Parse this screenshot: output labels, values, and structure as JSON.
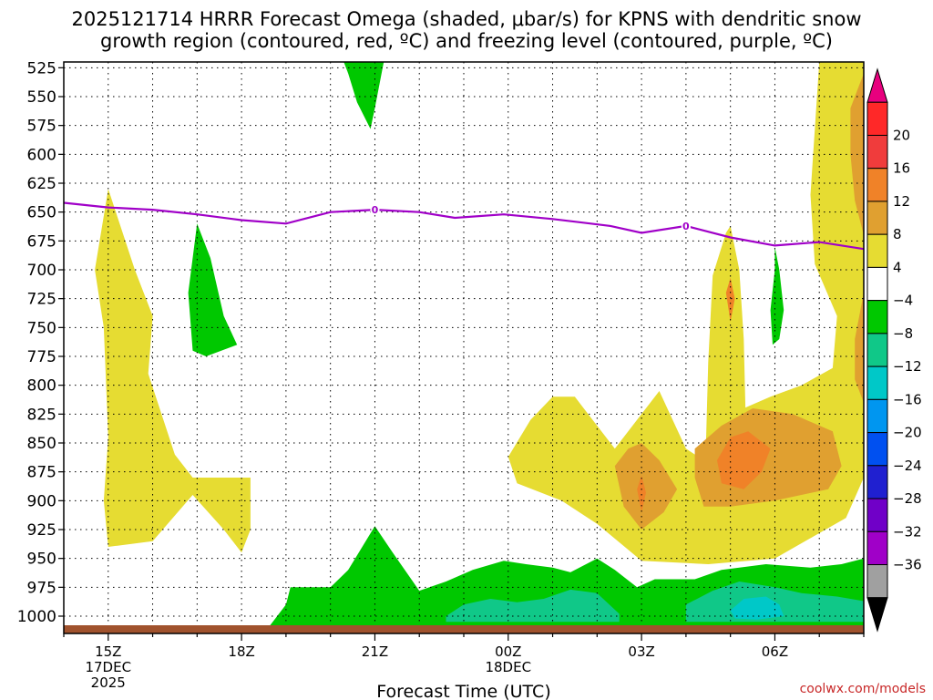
{
  "chart_data": {
    "type": "heatmap",
    "title": "2025121714 HRRR Forecast Omega (shaded, μbar/s) for KPNS with dendritic snow",
    "title_line2": "growth region (contoured, red, ºC) and freezing level (contoured, purple, ºC)",
    "xlabel": "Forecast Time (UTC)",
    "x_ticks": [
      {
        "label": "15Z",
        "hour": 15,
        "sub1": "17DEC",
        "sub2": "2025"
      },
      {
        "label": "18Z",
        "hour": 18,
        "sub1": "",
        "sub2": ""
      },
      {
        "label": "21Z",
        "hour": 21,
        "sub1": "",
        "sub2": ""
      },
      {
        "label": "00Z",
        "hour": 24,
        "sub1": "18DEC",
        "sub2": ""
      },
      {
        "label": "03Z",
        "hour": 27,
        "sub1": "",
        "sub2": ""
      },
      {
        "label": "06Z",
        "hour": 30,
        "sub1": "",
        "sub2": ""
      }
    ],
    "x_range_hours": [
      14,
      32
    ],
    "y_levels_hpa": [
      525,
      550,
      575,
      600,
      625,
      650,
      675,
      700,
      725,
      750,
      775,
      800,
      825,
      850,
      875,
      900,
      925,
      950,
      975,
      1000
    ],
    "y_range_hpa": [
      520,
      1015
    ],
    "colorbar": {
      "labels": [
        "20",
        "16",
        "12",
        "8",
        "4",
        "−4",
        "−8",
        "−12",
        "−16",
        "−20",
        "−24",
        "−28",
        "−32",
        "−36"
      ],
      "bins": [
        "#e8007e",
        "#ff2828",
        "#f03c3c",
        "#f08228",
        "#e0a030",
        "#e6dc32",
        "#ffffff",
        "#00c800",
        "#10c888",
        "#00c8c8",
        "#0096f0",
        "#0050f0",
        "#2020d0",
        "#7000c8",
        "#a000c8",
        "#a0a0a0",
        "#000000"
      ]
    },
    "series": [
      {
        "name": "Omega +4 to +8 (rising-motion shading, yellow)",
        "color": "#e6dc32",
        "regions": [
          {
            "id": "yellow-left-column",
            "points": [
              [
                15.0,
                630
              ],
              [
                15.6,
                700
              ],
              [
                16.0,
                740
              ],
              [
                15.9,
                790
              ],
              [
                16.5,
                860
              ],
              [
                16.9,
                880
              ],
              [
                18.2,
                880
              ],
              [
                18.2,
                925
              ],
              [
                18.0,
                945
              ],
              [
                17.6,
                925
              ],
              [
                16.9,
                895
              ],
              [
                16.0,
                935
              ],
              [
                15.0,
                940
              ],
              [
                14.9,
                900
              ],
              [
                15.0,
                845
              ],
              [
                14.9,
                750
              ],
              [
                14.7,
                700
              ]
            ]
          },
          {
            "id": "yellow-lower-lobe",
            "points": [
              [
                24.0,
                862
              ],
              [
                24.5,
                830
              ],
              [
                25.0,
                810
              ],
              [
                25.5,
                810
              ],
              [
                26.0,
                835
              ],
              [
                26.4,
                855
              ],
              [
                27.0,
                825
              ],
              [
                27.4,
                805
              ],
              [
                28.0,
                855
              ],
              [
                28.4,
                865
              ],
              [
                28.8,
                840
              ],
              [
                29.3,
                820
              ],
              [
                29.9,
                810
              ],
              [
                30.6,
                800
              ],
              [
                31.3,
                785
              ],
              [
                31.4,
                740
              ],
              [
                30.9,
                695
              ],
              [
                30.8,
                635
              ],
              [
                31.0,
                520
              ],
              [
                32.0,
                520
              ],
              [
                32.0,
                880
              ],
              [
                31.6,
                915
              ],
              [
                30.0,
                950
              ],
              [
                28.5,
                955
              ],
              [
                27.0,
                952
              ],
              [
                26.0,
                920
              ],
              [
                25.2,
                900
              ],
              [
                24.2,
                885
              ]
            ]
          },
          {
            "id": "yellow-tower-0430",
            "points": [
              [
                28.4,
                920
              ],
              [
                28.5,
                780
              ],
              [
                28.6,
                705
              ],
              [
                28.9,
                668
              ],
              [
                29.0,
                662
              ],
              [
                29.2,
                700
              ],
              [
                29.3,
                760
              ],
              [
                29.4,
                920
              ]
            ]
          }
        ]
      },
      {
        "name": "Omega +8 to +12 (light orange)",
        "color": "#e0a030",
        "regions": [
          {
            "id": "lt-orange-0300",
            "points": [
              [
                26.4,
                870
              ],
              [
                26.7,
                855
              ],
              [
                27.0,
                850
              ],
              [
                27.4,
                865
              ],
              [
                27.8,
                890
              ],
              [
                27.5,
                910
              ],
              [
                27.0,
                925
              ],
              [
                26.6,
                905
              ]
            ]
          },
          {
            "id": "lt-orange-0530",
            "points": [
              [
                28.2,
                855
              ],
              [
                28.8,
                835
              ],
              [
                29.5,
                820
              ],
              [
                30.4,
                825
              ],
              [
                31.3,
                840
              ],
              [
                31.5,
                870
              ],
              [
                31.2,
                890
              ],
              [
                30.0,
                900
              ],
              [
                29.0,
                905
              ],
              [
                28.4,
                905
              ],
              [
                28.2,
                880
              ]
            ]
          },
          {
            "id": "lt-orange-right-edge",
            "points": [
              [
                31.7,
                560
              ],
              [
                31.9,
                540
              ],
              [
                32.0,
                530
              ],
              [
                32.0,
                670
              ],
              [
                31.8,
                640
              ],
              [
                31.7,
                600
              ]
            ]
          },
          {
            "id": "lt-orange-right-lower",
            "points": [
              [
                31.8,
                760
              ],
              [
                32.0,
                720
              ],
              [
                32.0,
                815
              ],
              [
                31.8,
                795
              ]
            ]
          }
        ]
      },
      {
        "name": "Omega +12 to +16 (orange)",
        "color": "#f08228",
        "regions": [
          {
            "id": "orange-0530",
            "points": [
              [
                28.7,
                865
              ],
              [
                29.0,
                845
              ],
              [
                29.4,
                840
              ],
              [
                29.9,
                855
              ],
              [
                29.7,
                875
              ],
              [
                29.3,
                890
              ],
              [
                28.8,
                885
              ]
            ]
          },
          {
            "id": "orange-0300",
            "points": [
              [
                26.9,
                890
              ],
              [
                27.0,
                878
              ],
              [
                27.1,
                893
              ],
              [
                27.0,
                910
              ]
            ]
          },
          {
            "id": "orange-0500-tower",
            "points": [
              [
                28.9,
                720
              ],
              [
                29.0,
                707
              ],
              [
                29.1,
                725
              ],
              [
                29.0,
                745
              ]
            ]
          }
        ]
      },
      {
        "name": "Omega −4 to −8 (sinking-motion shading, green)",
        "color": "#00c800",
        "regions": [
          {
            "id": "green-top-21z",
            "points": [
              [
                20.3,
                520
              ],
              [
                21.2,
                520
              ],
              [
                21.0,
                560
              ],
              [
                20.9,
                578
              ],
              [
                20.6,
                555
              ],
              [
                20.4,
                530
              ]
            ]
          },
          {
            "id": "green-1730",
            "points": [
              [
                17.0,
                660
              ],
              [
                17.3,
                690
              ],
              [
                17.6,
                740
              ],
              [
                17.9,
                765
              ],
              [
                17.2,
                775
              ],
              [
                16.9,
                770
              ],
              [
                16.8,
                720
              ]
            ]
          },
          {
            "id": "green-0630",
            "points": [
              [
                29.9,
                735
              ],
              [
                30.0,
                700
              ],
              [
                30.0,
                680
              ],
              [
                30.1,
                700
              ],
              [
                30.2,
                735
              ],
              [
                30.1,
                760
              ],
              [
                29.95,
                765
              ]
            ]
          },
          {
            "id": "green-bottom-band",
            "points": [
              [
                18.6,
                1010
              ],
              [
                19.0,
                990
              ],
              [
                19.1,
                975
              ],
              [
                20.0,
                975
              ],
              [
                20.4,
                960
              ],
              [
                21.0,
                922
              ],
              [
                21.4,
                945
              ],
              [
                22.0,
                978
              ],
              [
                22.6,
                970
              ],
              [
                23.2,
                960
              ],
              [
                23.9,
                952
              ],
              [
                24.4,
                955
              ],
              [
                25.0,
                958
              ],
              [
                25.4,
                962
              ],
              [
                26.0,
                950
              ],
              [
                26.4,
                960
              ],
              [
                26.9,
                975
              ],
              [
                27.3,
                968
              ],
              [
                28.2,
                968
              ],
              [
                28.8,
                960
              ],
              [
                29.8,
                955
              ],
              [
                30.8,
                958
              ],
              [
                31.5,
                955
              ],
              [
                32.0,
                950
              ],
              [
                32.0,
                1012
              ],
              [
                18.6,
                1012
              ]
            ]
          }
        ]
      },
      {
        "name": "Omega −8 to −12 (teal)",
        "color": "#10c888",
        "regions": [
          {
            "id": "teal-0000",
            "points": [
              [
                22.6,
                1000
              ],
              [
                23.0,
                990
              ],
              [
                23.6,
                985
              ],
              [
                24.2,
                988
              ],
              [
                24.8,
                985
              ],
              [
                25.4,
                977
              ],
              [
                26.0,
                980
              ],
              [
                26.5,
                998
              ],
              [
                26.5,
                1005
              ],
              [
                22.6,
                1005
              ]
            ]
          },
          {
            "id": "teal-0600",
            "points": [
              [
                28.0,
                990
              ],
              [
                28.6,
                978
              ],
              [
                29.2,
                970
              ],
              [
                30.0,
                975
              ],
              [
                30.6,
                980
              ],
              [
                31.4,
                983
              ],
              [
                32.0,
                987
              ],
              [
                32.0,
                1005
              ],
              [
                28.0,
                1005
              ]
            ]
          }
        ]
      },
      {
        "name": "Omega −12 to −16 (cyan)",
        "color": "#00c8c8",
        "regions": [
          {
            "id": "cyan-0600",
            "points": [
              [
                29.0,
                995
              ],
              [
                29.3,
                985
              ],
              [
                29.8,
                983
              ],
              [
                30.1,
                990
              ],
              [
                30.2,
                1000
              ],
              [
                29.6,
                1003
              ],
              [
                29.1,
                1002
              ]
            ]
          }
        ]
      },
      {
        "name": "Freezing level 0 ºC (purple)",
        "color": "#a000c8",
        "label": "0",
        "points": [
          [
            14.0,
            642
          ],
          [
            15.0,
            646
          ],
          [
            16.0,
            648
          ],
          [
            17.0,
            652
          ],
          [
            18.0,
            657
          ],
          [
            19.0,
            660
          ],
          [
            20.0,
            650
          ],
          [
            21.0,
            648
          ],
          [
            22.0,
            650
          ],
          [
            22.8,
            655
          ],
          [
            23.9,
            652
          ],
          [
            25.0,
            656
          ],
          [
            26.3,
            662
          ],
          [
            27.0,
            668
          ],
          [
            28.0,
            662
          ],
          [
            29.0,
            672
          ],
          [
            30.0,
            679
          ],
          [
            31.0,
            676
          ],
          [
            32.0,
            682
          ]
        ],
        "labels_at": [
          {
            "hour": 21.0,
            "hpa": 648
          },
          {
            "hour": 28.0,
            "hpa": 662
          }
        ]
      },
      {
        "name": "Surface / terrain",
        "color": "#a0522d",
        "bottom_hpa": 1010
      }
    ]
  },
  "credit": "coolwx.com/models"
}
